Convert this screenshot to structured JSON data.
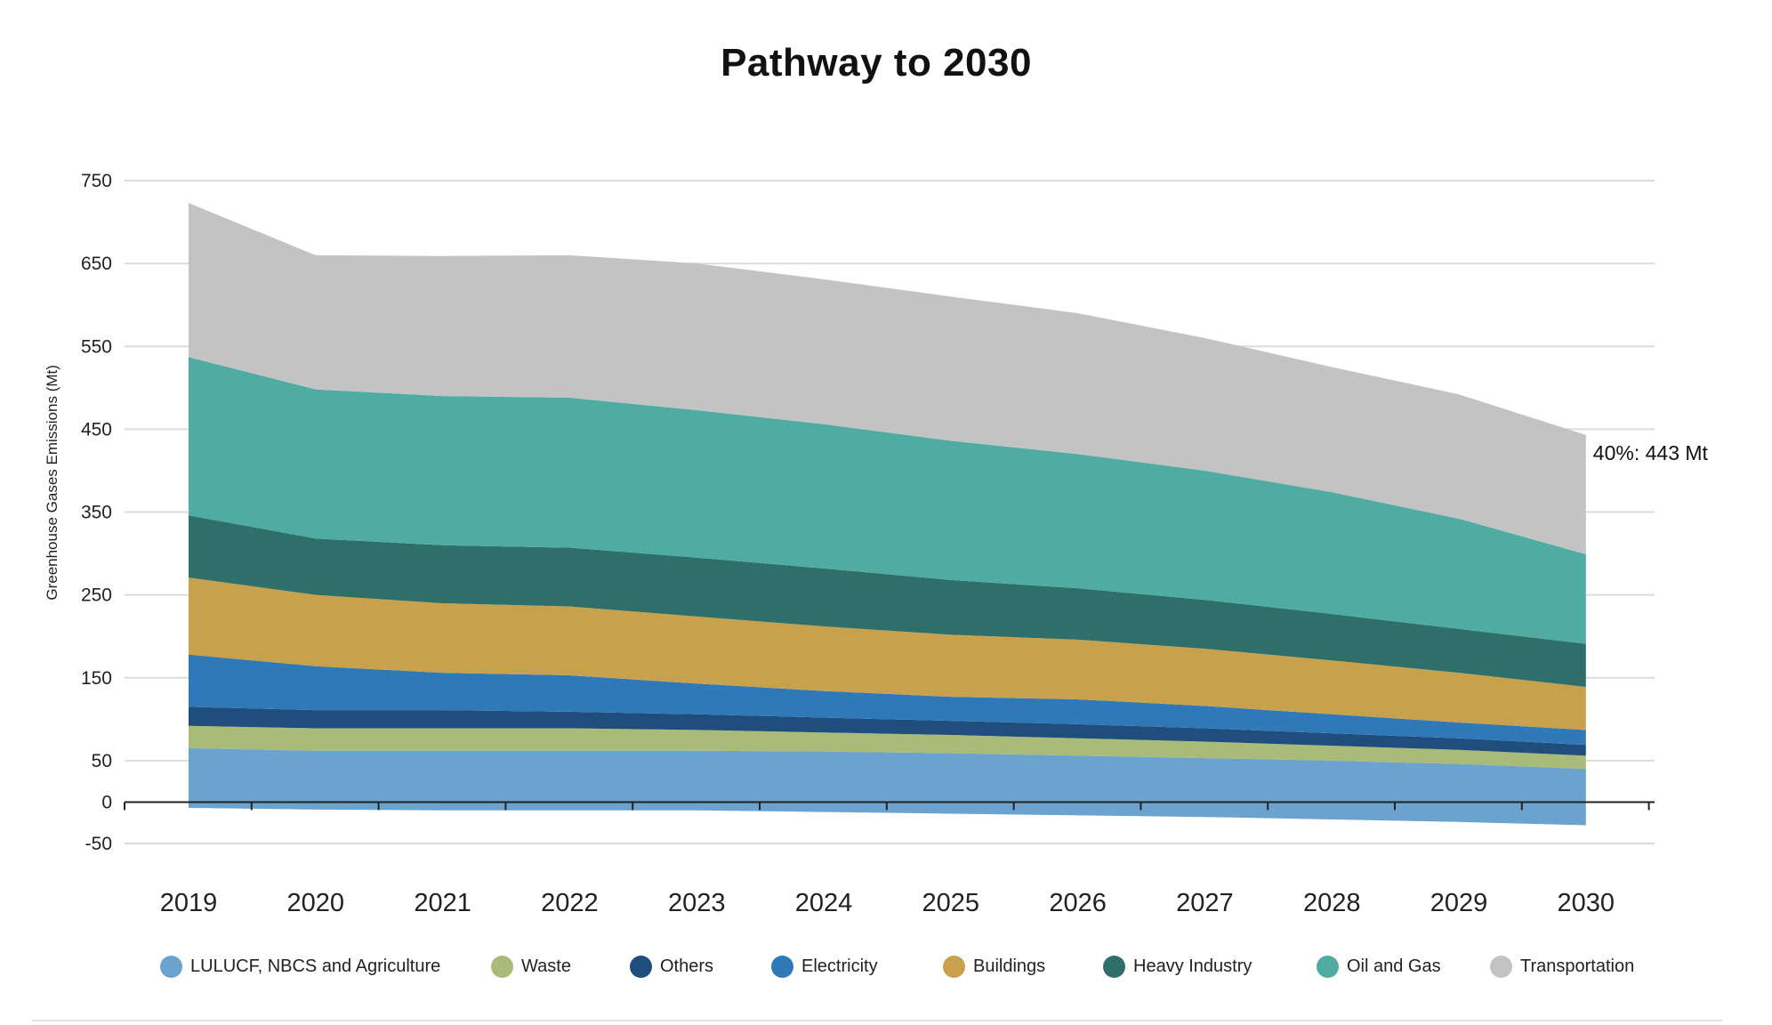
{
  "chart_data": {
    "type": "area",
    "title": "Pathway to 2030",
    "xlabel": "",
    "ylabel": "Greenhouse Gases Emissions (Mt)",
    "ylim": [
      -50,
      750
    ],
    "yticks": [
      750,
      650,
      550,
      450,
      350,
      250,
      150,
      50,
      0,
      -50
    ],
    "grid": true,
    "legend_position": "bottom",
    "stacked": true,
    "categories": [
      "2019",
      "2020",
      "2021",
      "2022",
      "2023",
      "2024",
      "2025",
      "2026",
      "2027",
      "2028",
      "2029",
      "2030"
    ],
    "negative_band": {
      "of_series": "LULUCF, NBCS and Agriculture",
      "values": [
        -7,
        -9,
        -10,
        -10,
        -10,
        -12,
        -14,
        -16,
        -18,
        -21,
        -24,
        -28
      ]
    },
    "series": [
      {
        "name": "LULUCF, NBCS and Agriculture",
        "color": "#6ba3cf",
        "values": [
          65,
          62,
          62,
          62,
          62,
          61,
          59,
          56,
          53,
          50,
          46,
          40
        ]
      },
      {
        "name": "Waste",
        "color": "#a8bb79",
        "values": [
          27,
          27,
          27,
          27,
          25,
          23,
          22,
          21,
          20,
          18,
          17,
          16
        ]
      },
      {
        "name": "Others",
        "color": "#1f4e7c",
        "values": [
          23,
          22,
          22,
          20,
          19,
          18,
          17,
          17,
          16,
          15,
          14,
          13
        ]
      },
      {
        "name": "Electricity",
        "color": "#2f79b9",
        "values": [
          63,
          53,
          45,
          44,
          37,
          32,
          29,
          30,
          27,
          23,
          19,
          18
        ]
      },
      {
        "name": "Buildings",
        "color": "#c7a14c",
        "values": [
          93,
          86,
          84,
          83,
          81,
          78,
          75,
          72,
          69,
          65,
          60,
          52
        ]
      },
      {
        "name": "Heavy Industry",
        "color": "#2e6f6a",
        "values": [
          75,
          68,
          70,
          71,
          71,
          70,
          66,
          62,
          59,
          56,
          53,
          52
        ]
      },
      {
        "name": "Oil and Gas",
        "color": "#4eaca3",
        "values": [
          191,
          180,
          180,
          181,
          178,
          174,
          168,
          162,
          156,
          147,
          133,
          108
        ]
      },
      {
        "name": "Transportation",
        "color": "#c3c3c3",
        "values": [
          186,
          162,
          169,
          172,
          177,
          175,
          174,
          170,
          160,
          151,
          150,
          144
        ]
      }
    ],
    "totals": [
      723,
      660,
      659,
      660,
      650,
      631,
      610,
      590,
      560,
      525,
      492,
      443
    ],
    "annotation": "40%: 443 Mt"
  }
}
